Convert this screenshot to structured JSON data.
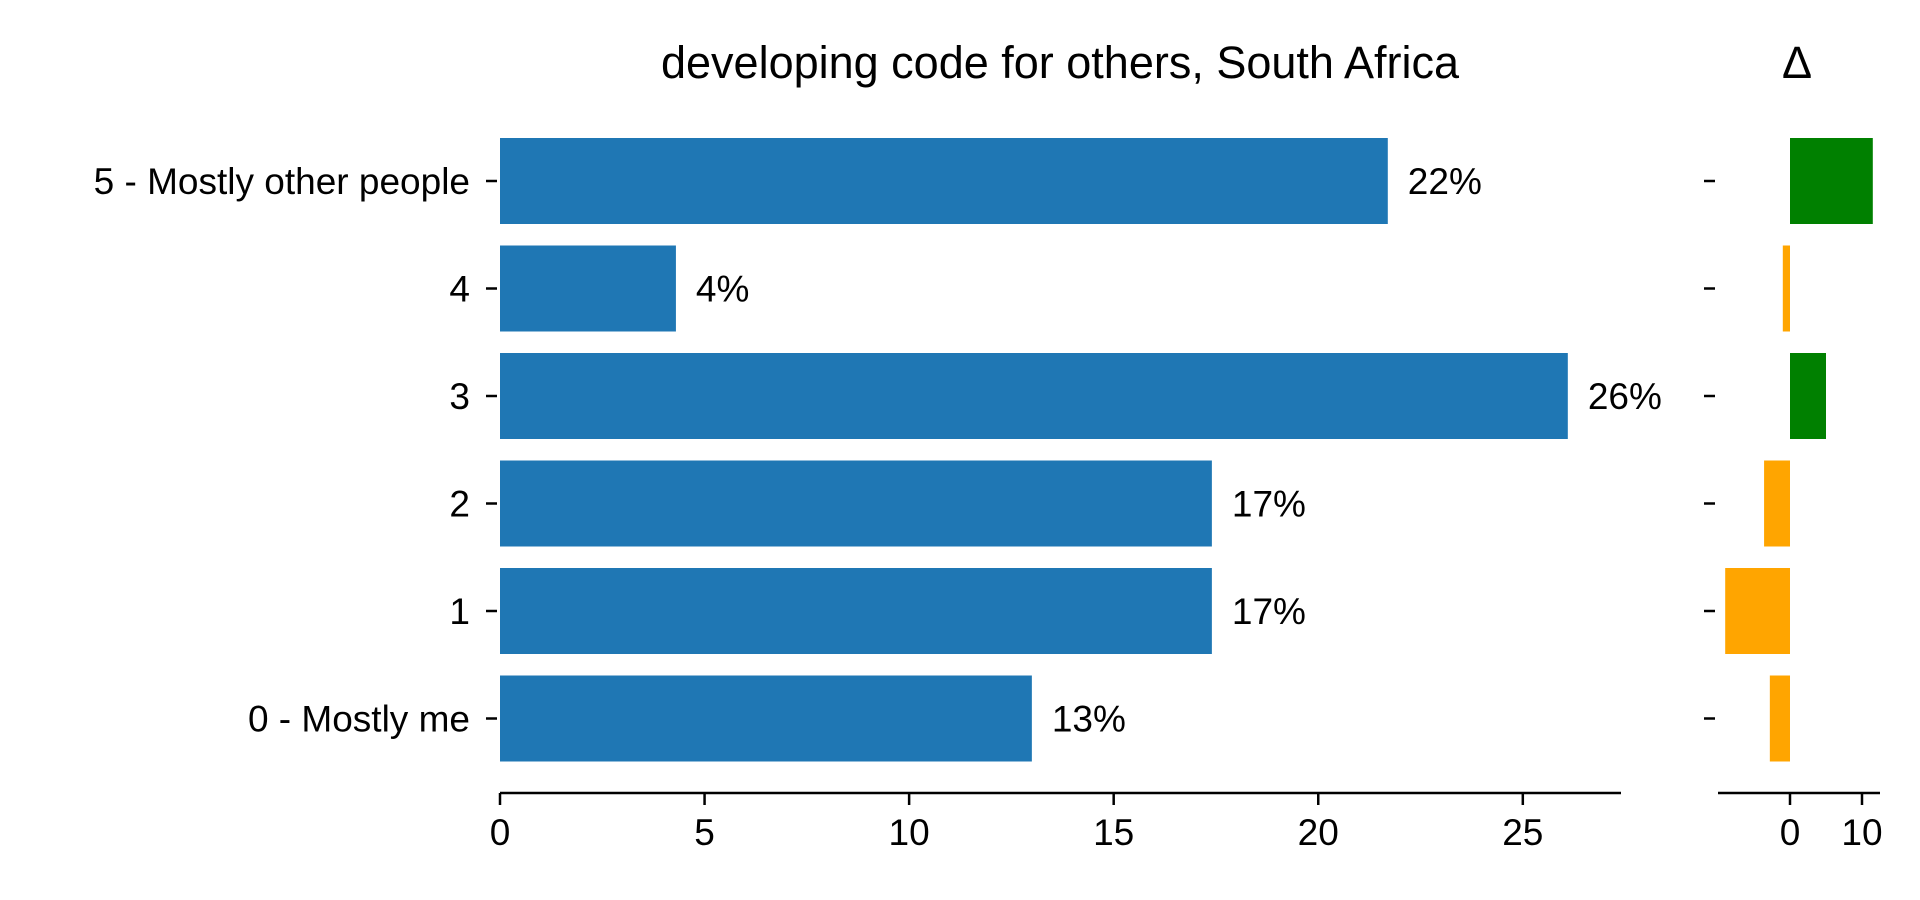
{
  "chart_data": [
    {
      "type": "bar",
      "orientation": "horizontal",
      "title": "developing code for others, South Africa",
      "categories": [
        "5 - Mostly other people",
        "4",
        "3",
        "2",
        "1",
        "0 - Mostly me"
      ],
      "values": [
        21.7,
        4.3,
        26.1,
        17.4,
        17.4,
        13.0
      ],
      "data_labels": [
        "22%",
        "4%",
        "26%",
        "17%",
        "17%",
        "13%"
      ],
      "xlim": [
        0,
        27.4
      ],
      "xticks": [
        0,
        5,
        10,
        15,
        20,
        25
      ],
      "xticklabels": [
        "0",
        "5",
        "10",
        "15",
        "20",
        "25"
      ],
      "color": "#1f77b4",
      "grid": false
    },
    {
      "type": "bar",
      "orientation": "horizontal",
      "title": "Δ",
      "categories": [
        "5 - Mostly other people",
        "4",
        "3",
        "2",
        "1",
        "0 - Mostly me"
      ],
      "values": [
        11.5,
        -1.0,
        5.0,
        -3.6,
        -9.0,
        -2.8
      ],
      "xlim": [
        -10.0,
        12.5
      ],
      "xticks": [
        0,
        10
      ],
      "xticklabels": [
        "0",
        "10"
      ],
      "positive_color": "#008000",
      "negative_color": "#ffa500",
      "grid": false
    }
  ]
}
